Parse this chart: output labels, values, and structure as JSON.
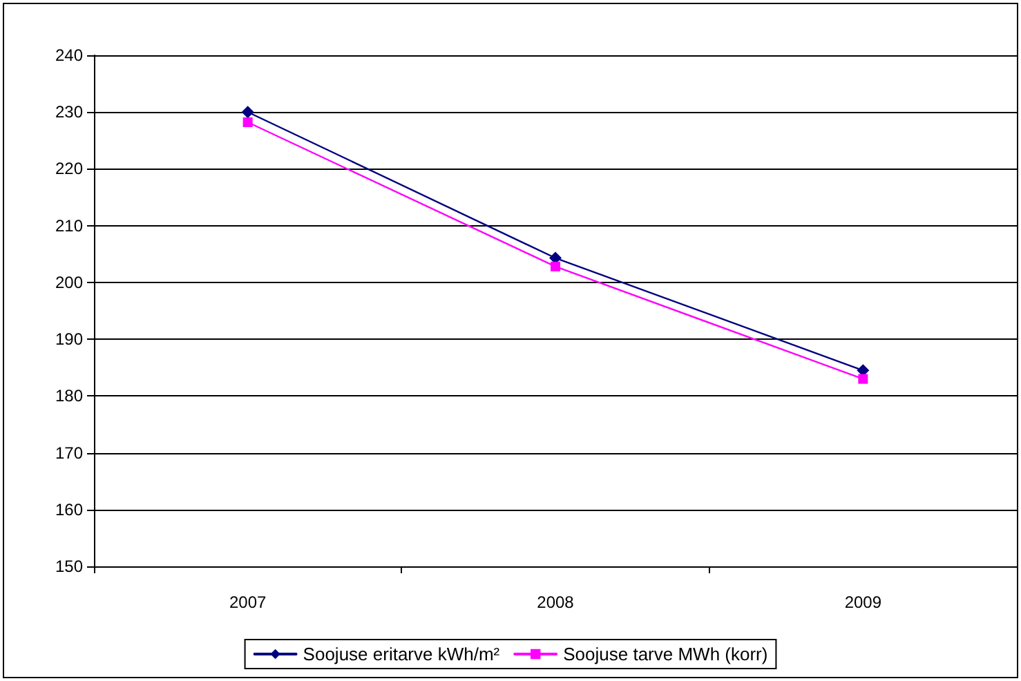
{
  "chart_data": {
    "type": "line",
    "categories": [
      "2007",
      "2008",
      "2009"
    ],
    "series": [
      {
        "name": "Soojuse eritarve kWh/m²",
        "color": "#000080",
        "marker": "diamond",
        "values": [
          230,
          204.3,
          184.5
        ]
      },
      {
        "name": "Soojuse tarve MWh (korr)",
        "color": "#ff00ff",
        "marker": "square",
        "values": [
          228.2,
          202.8,
          183
        ]
      }
    ],
    "ylim": [
      150,
      240
    ],
    "yticks": [
      150,
      160,
      170,
      180,
      190,
      200,
      210,
      220,
      230,
      240
    ],
    "grid": "y",
    "legend": "bottom",
    "line_style": "solid"
  }
}
